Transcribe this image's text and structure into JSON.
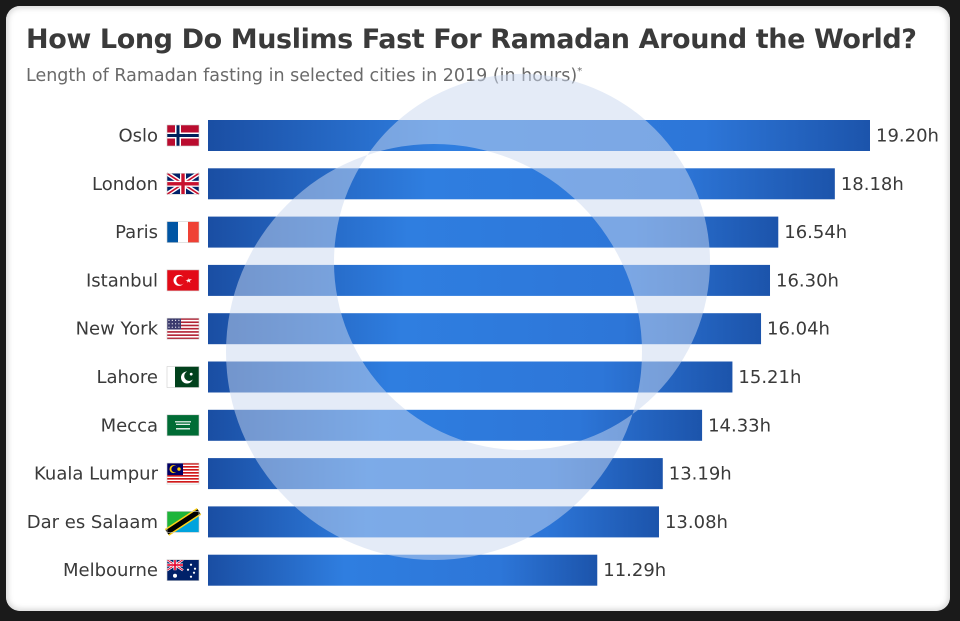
{
  "chart_data": {
    "type": "bar",
    "orientation": "horizontal",
    "title": "How Long Do Muslims Fast For Ramadan Around the World?",
    "subtitle": "Length of Ramadan fasting in selected cities in 2019 (in hours)",
    "subtitle_note_marker": "*",
    "categories": [
      "Oslo",
      "London",
      "Paris",
      "Istanbul",
      "New York",
      "Lahore",
      "Mecca",
      "Kuala Lumpur",
      "Dar es Salaam",
      "Melbourne"
    ],
    "values": [
      19.2,
      18.18,
      16.54,
      16.3,
      16.04,
      15.21,
      14.33,
      13.19,
      13.08,
      11.29
    ],
    "value_labels": [
      "19.20h",
      "18.18h",
      "16.54h",
      "16.30h",
      "16.04h",
      "15.21h",
      "14.33h",
      "13.19h",
      "13.08h",
      "11.29h"
    ],
    "flags": [
      "norway-flag-icon",
      "uk-flag-icon",
      "france-flag-icon",
      "turkey-flag-icon",
      "usa-flag-icon",
      "pakistan-flag-icon",
      "saudi-flag-icon",
      "malaysia-flag-icon",
      "tanzania-flag-icon",
      "australia-flag-icon"
    ],
    "xlim": [
      0,
      19.2
    ],
    "grid": false,
    "bar_colors": {
      "dark": "#1a4ea3",
      "light": "#2f7ee0"
    },
    "decoration": "crescent-moon-icon"
  }
}
